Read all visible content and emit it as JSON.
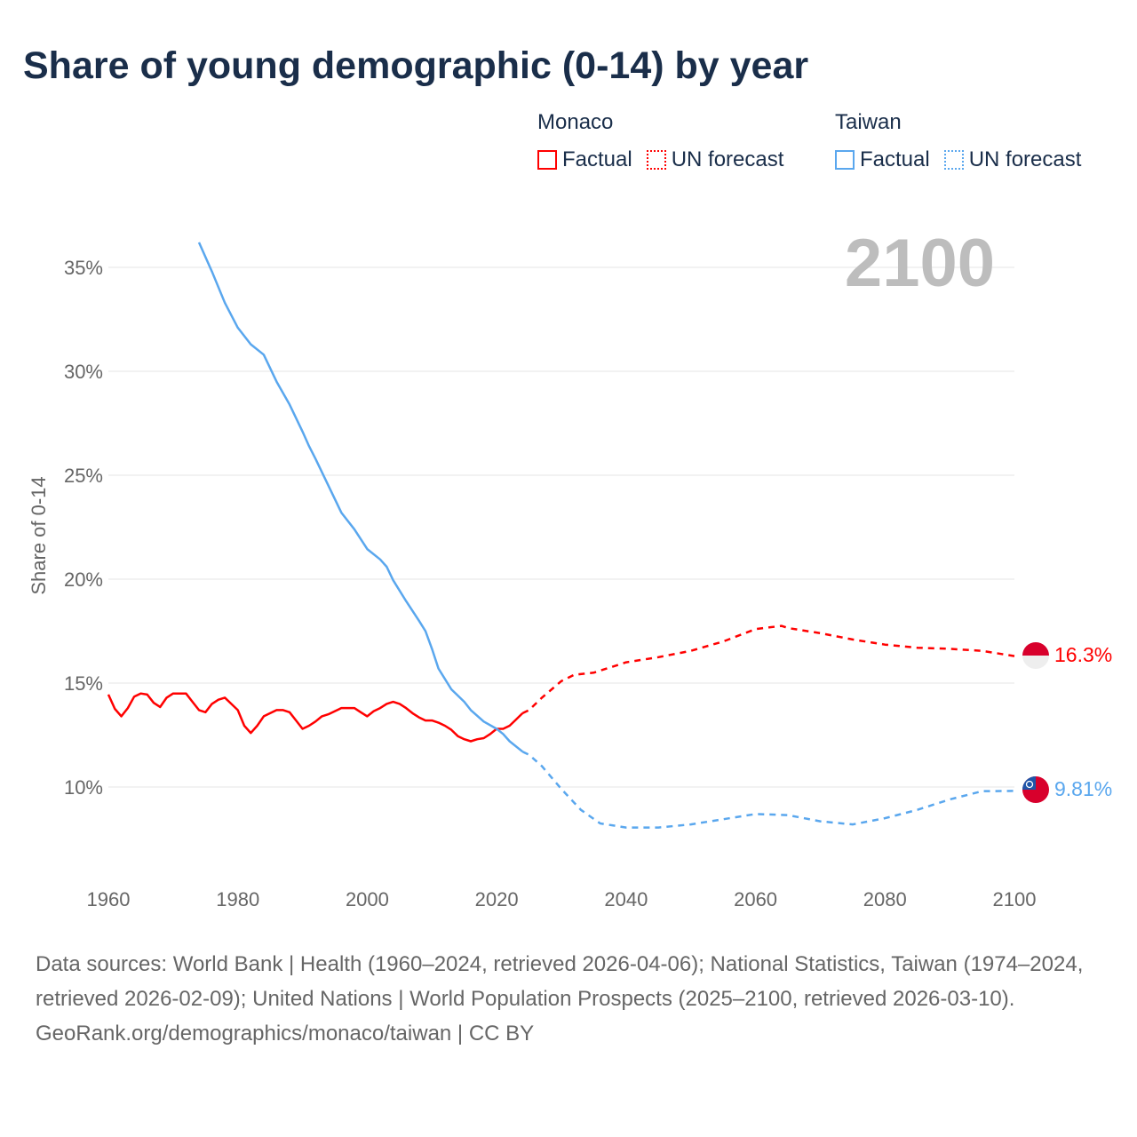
{
  "title": "Share of young demographic (0-14) by year",
  "legend": {
    "groups": [
      {
        "name": "Monaco",
        "factual": "Factual",
        "forecast": "UN forecast",
        "color": "#ff0000"
      },
      {
        "name": "Taiwan",
        "factual": "Factual",
        "forecast": "UN forecast",
        "color": "#5aa7ee"
      }
    ]
  },
  "year_label": "2100",
  "end_labels": {
    "monaco": "16.3%",
    "taiwan": "9.81%"
  },
  "sources": {
    "text": "Data sources: World Bank | Health (1960–2024, retrieved 2026-04-06); National Statistics, Taiwan (1974–2024, retrieved 2026-02-09); United Nations | World Population Prospects (2025–2100, retrieved 2026-03-10).",
    "credit": "GeoRank.org/demographics/monaco/taiwan | CC BY"
  },
  "chart_data": {
    "type": "line",
    "title": "Share of young demographic (0-14) by year",
    "xlabel": "",
    "ylabel": "Share of 0-14",
    "xlim": [
      1960,
      2100
    ],
    "ylim": [
      5.8,
      36.5
    ],
    "x_ticks": [
      1960,
      1980,
      2000,
      2020,
      2040,
      2060,
      2080,
      2100
    ],
    "x_tick_labels": [
      "1960",
      "1980",
      "2000",
      "2020",
      "2040",
      "2060",
      "2080",
      "2100"
    ],
    "y_ticks": [
      10,
      15,
      20,
      25,
      30,
      35
    ],
    "y_tick_labels": [
      "10%",
      "15%",
      "20%",
      "25%",
      "30%",
      "35%"
    ],
    "grid": true,
    "legend_position": "top-right",
    "series": [
      {
        "name": "Monaco Factual",
        "color": "#ff0000",
        "dash": false,
        "x": [
          1960,
          1961,
          1962,
          1963,
          1964,
          1965,
          1966,
          1967,
          1968,
          1969,
          1970,
          1971,
          1972,
          1973,
          1974,
          1975,
          1976,
          1977,
          1978,
          1979,
          1980,
          1981,
          1982,
          1983,
          1984,
          1985,
          1986,
          1987,
          1988,
          1989,
          1990,
          1991,
          1992,
          1993,
          1994,
          1995,
          1996,
          1997,
          1998,
          1999,
          2000,
          2001,
          2002,
          2003,
          2004,
          2005,
          2006,
          2007,
          2008,
          2009,
          2010,
          2011,
          2012,
          2013,
          2014,
          2015,
          2016,
          2017,
          2018,
          2019,
          2020,
          2021,
          2022,
          2023,
          2024
        ],
        "y": [
          14.45,
          13.76,
          13.4,
          13.8,
          14.35,
          14.5,
          14.45,
          14.05,
          13.85,
          14.3,
          14.5,
          14.5,
          14.5,
          14.1,
          13.7,
          13.6,
          14.0,
          14.2,
          14.3,
          14.0,
          13.7,
          12.95,
          12.6,
          12.95,
          13.4,
          13.55,
          13.7,
          13.7,
          13.6,
          13.2,
          12.8,
          12.95,
          13.15,
          13.4,
          13.5,
          13.65,
          13.8,
          13.8,
          13.8,
          13.6,
          13.4,
          13.65,
          13.8,
          14.0,
          14.1,
          14.0,
          13.8,
          13.55,
          13.35,
          13.2,
          13.2,
          13.1,
          12.95,
          12.75,
          12.45,
          12.3,
          12.2,
          12.3,
          12.35,
          12.55,
          12.8,
          12.8,
          12.95,
          13.25,
          13.55
        ]
      },
      {
        "name": "Monaco UN forecast",
        "color": "#ff0000",
        "dash": true,
        "x": [
          2024,
          2025,
          2027,
          2030,
          2032,
          2035,
          2040,
          2045,
          2050,
          2055,
          2060,
          2064,
          2065,
          2070,
          2075,
          2080,
          2085,
          2090,
          2095,
          2100
        ],
        "y": [
          13.55,
          13.7,
          14.3,
          15.1,
          15.4,
          15.5,
          16.0,
          16.25,
          16.55,
          17.0,
          17.6,
          17.75,
          17.65,
          17.4,
          17.1,
          16.85,
          16.7,
          16.65,
          16.55,
          16.3
        ]
      },
      {
        "name": "Taiwan Factual",
        "color": "#5aa7ee",
        "dash": false,
        "x": [
          1974,
          1976,
          1978,
          1980,
          1982,
          1984,
          1986,
          1988,
          1990,
          1991,
          1992,
          1994,
          1996,
          1998,
          2000,
          2002,
          2003,
          2004,
          2006,
          2008,
          2009,
          2010,
          2011,
          2013,
          2015,
          2016,
          2018,
          2020,
          2021,
          2022,
          2024
        ],
        "y": [
          36.2,
          34.8,
          33.3,
          32.1,
          31.3,
          30.8,
          29.5,
          28.4,
          27.1,
          26.4,
          25.8,
          24.5,
          23.2,
          22.4,
          21.45,
          20.95,
          20.6,
          19.95,
          18.95,
          18.0,
          17.5,
          16.65,
          15.7,
          14.7,
          14.1,
          13.7,
          13.15,
          12.8,
          12.55,
          12.2,
          11.7
        ]
      },
      {
        "name": "Taiwan UN forecast",
        "color": "#5aa7ee",
        "dash": true,
        "x": [
          2024,
          2025,
          2027,
          2030,
          2033,
          2036,
          2040,
          2045,
          2050,
          2055,
          2060,
          2065,
          2070,
          2075,
          2080,
          2085,
          2090,
          2095,
          2100
        ],
        "y": [
          11.7,
          11.55,
          11.0,
          9.9,
          8.9,
          8.25,
          8.05,
          8.05,
          8.2,
          8.45,
          8.7,
          8.65,
          8.35,
          8.2,
          8.5,
          8.9,
          9.4,
          9.8,
          9.81
        ]
      }
    ]
  }
}
